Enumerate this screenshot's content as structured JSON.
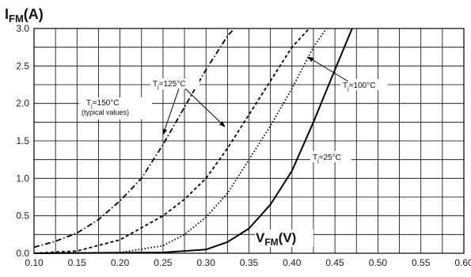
{
  "chart_data": {
    "type": "line",
    "ylabel_main": "I",
    "ylabel_sub": "FM",
    "ylabel_unit": "(A)",
    "xlabel_main": "V",
    "xlabel_sub": "FM",
    "xlabel_unit": "(V)",
    "xlim": [
      0.1,
      0.6
    ],
    "ylim": [
      0.0,
      3.0
    ],
    "xticks": [
      "0.10",
      "0.15",
      "0.20",
      "0.25",
      "0.30",
      "0.35",
      "0.40",
      "0.45",
      "0.50",
      "0.55",
      "0.60"
    ],
    "yticks": [
      "0.0",
      "0.5",
      "1.0",
      "1.5",
      "2.0",
      "2.5",
      "3.0"
    ],
    "grid": true,
    "series": [
      {
        "name": "Tj=150°C (typical values)",
        "style": "dashdot",
        "x": [
          0.1,
          0.125,
          0.15,
          0.175,
          0.2,
          0.225,
          0.25,
          0.275,
          0.3,
          0.325,
          0.333
        ],
        "y": [
          0.08,
          0.16,
          0.27,
          0.45,
          0.7,
          1.0,
          1.45,
          1.95,
          2.45,
          2.9,
          3.0
        ]
      },
      {
        "name": "Tj=125°C",
        "style": "dashed",
        "x": [
          0.1,
          0.15,
          0.2,
          0.25,
          0.275,
          0.3,
          0.325,
          0.35,
          0.375,
          0.4,
          0.42
        ],
        "y": [
          0.0,
          0.03,
          0.18,
          0.5,
          0.72,
          1.0,
          1.4,
          1.85,
          2.3,
          2.75,
          3.0
        ]
      },
      {
        "name": "Tj=100°C",
        "style": "dotted",
        "x": [
          0.1,
          0.2,
          0.25,
          0.275,
          0.3,
          0.325,
          0.35,
          0.375,
          0.4,
          0.425,
          0.44
        ],
        "y": [
          0.0,
          0.01,
          0.1,
          0.25,
          0.48,
          0.8,
          1.25,
          1.7,
          2.2,
          2.75,
          3.0
        ]
      },
      {
        "name": "Tj=25°C",
        "style": "solid",
        "x": [
          0.1,
          0.25,
          0.3,
          0.325,
          0.35,
          0.375,
          0.4,
          0.425,
          0.45,
          0.47
        ],
        "y": [
          0.0,
          0.01,
          0.05,
          0.15,
          0.33,
          0.65,
          1.1,
          1.75,
          2.45,
          3.0
        ]
      }
    ],
    "annotations": [
      {
        "label_main": "T",
        "label_sub": "j",
        "label_rest": "=125°C"
      },
      {
        "label_main": "T",
        "label_sub": "j",
        "label_rest": "=150°C",
        "note": "(typical values)"
      },
      {
        "label_main": "T",
        "label_sub": "j",
        "label_rest": "=100°C"
      },
      {
        "label_main": "T",
        "label_sub": "j",
        "label_rest": "=25°C"
      }
    ]
  }
}
